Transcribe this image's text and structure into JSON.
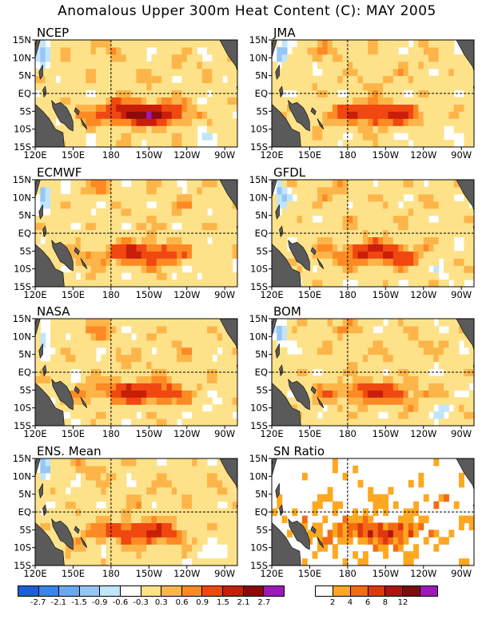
{
  "title": "Anomalous Upper 300m Heat Content (C): MAY 2005",
  "lat_labels": [
    "15N",
    "10N",
    "5N",
    "EQ",
    "5S",
    "10S",
    "15S"
  ],
  "lon_labels": [
    "120E",
    "150E",
    "180",
    "150W",
    "120W",
    "90W"
  ],
  "panels": [
    {
      "id": "ncep",
      "label": "NCEP",
      "type": "anomaly",
      "hot": 1.7
    },
    {
      "id": "jma",
      "label": "JMA",
      "type": "anomaly",
      "hot": 1.2
    },
    {
      "id": "ecmwf",
      "label": "ECMWF",
      "type": "anomaly",
      "hot": 1.1
    },
    {
      "id": "gfdl",
      "label": "GFDL",
      "type": "anomaly",
      "hot": 1.1
    },
    {
      "id": "nasa",
      "label": "NASA",
      "type": "anomaly",
      "hot": 1.2
    },
    {
      "id": "bom",
      "label": "BOM",
      "type": "anomaly",
      "hot": 1.0
    },
    {
      "id": "ens-mean",
      "label": "ENS. Mean",
      "type": "anomaly",
      "hot": 1.1
    },
    {
      "id": "sn-ratio",
      "label": "SN Ratio",
      "type": "snr",
      "hot": 1.0
    }
  ],
  "anomaly_colorbar": {
    "colors": [
      "#1a5fd6",
      "#3a86e8",
      "#6aa8f0",
      "#96c6f5",
      "#bfe6fa",
      "#ffffff",
      "#fde28a",
      "#fdb54a",
      "#fd8a23",
      "#f04810",
      "#c81e0a",
      "#8c0a0a",
      "#9a1ab8"
    ],
    "labels": [
      "-2.7",
      "-2.1",
      "-1.5",
      "-0.9",
      "-0.6",
      "-0.3",
      "0.3",
      "0.6",
      "0.9",
      "1.5",
      "2.1",
      "2.7"
    ]
  },
  "snr_colorbar": {
    "colors": [
      "#ffffff",
      "#fda820",
      "#f56a14",
      "#e0380e",
      "#b01410",
      "#7a0c0c",
      "#9a1ab8"
    ],
    "labels": [
      "2",
      "4",
      "6",
      "8",
      "12"
    ]
  }
}
